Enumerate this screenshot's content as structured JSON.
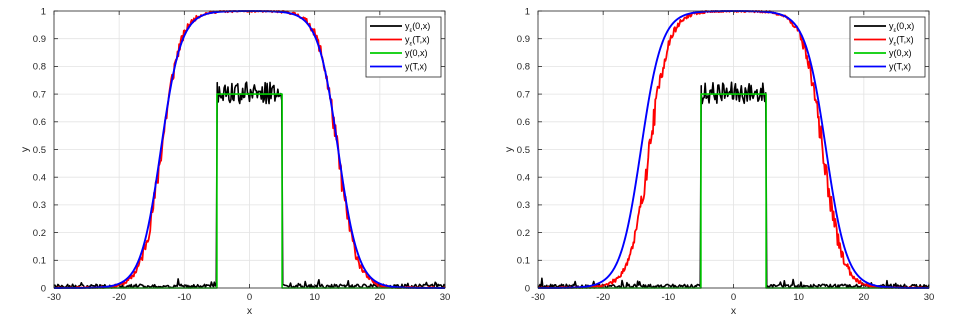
{
  "chart_data": [
    {
      "type": "line",
      "title": "",
      "xlabel": "x",
      "ylabel": "y",
      "xlim": [
        -30,
        30
      ],
      "ylim": [
        0,
        1
      ],
      "x_ticks": [
        "-30",
        "-20",
        "-10",
        "0",
        "10",
        "20",
        "30"
      ],
      "y_ticks": [
        "0",
        "0.1",
        "0.2",
        "0.3",
        "0.4",
        "0.5",
        "0.6",
        "0.7",
        "0.8",
        "0.9",
        "1"
      ],
      "grid": true,
      "legend_position": "top-right",
      "series": [
        {
          "name": "y_ε(0,x)",
          "color": "#000000",
          "profile": "noisy-box",
          "height": 0.7,
          "half_width": 5,
          "noise": 0.03,
          "seed": 3
        },
        {
          "name": "y_ε(T,x)",
          "color": "#ff0000",
          "profile": "noisy-plateau",
          "center": 0,
          "half_width": 13.5,
          "steepness": 1.45,
          "noise": 0.012,
          "seed": 11
        },
        {
          "name": "y(0,x)",
          "color": "#00cc00",
          "profile": "box",
          "height": 0.7,
          "half_width": 5
        },
        {
          "name": "y(T,x)",
          "color": "#0000ff",
          "profile": "plateau",
          "center": 0,
          "half_width": 13.6,
          "steepness": 1.55
        }
      ]
    },
    {
      "type": "line",
      "title": "",
      "xlabel": "x",
      "ylabel": "y",
      "xlim": [
        -30,
        30
      ],
      "ylim": [
        0,
        1
      ],
      "x_ticks": [
        "-30",
        "-20",
        "-10",
        "0",
        "10",
        "20",
        "30"
      ],
      "y_ticks": [
        "0",
        "0.1",
        "0.2",
        "0.3",
        "0.4",
        "0.5",
        "0.6",
        "0.7",
        "0.8",
        "0.9",
        "1"
      ],
      "grid": true,
      "legend_position": "top-right",
      "series": [
        {
          "name": "y_ε(0,x)",
          "color": "#000000",
          "profile": "noisy-box",
          "height": 0.7,
          "half_width": 5,
          "noise": 0.03,
          "seed": 7
        },
        {
          "name": "y_ε(T,x)",
          "color": "#ff0000",
          "profile": "noisy-plateau",
          "center": 0.4,
          "half_width": 13.3,
          "steepness": 1.5,
          "noise": 0.012,
          "seed": 19
        },
        {
          "name": "y(0,x)",
          "color": "#00cc00",
          "profile": "box",
          "height": 0.7,
          "half_width": 5
        },
        {
          "name": "y(T,x)",
          "color": "#0000ff",
          "profile": "plateau",
          "center": 0,
          "half_width": 14.2,
          "steepness": 1.6
        }
      ]
    }
  ]
}
